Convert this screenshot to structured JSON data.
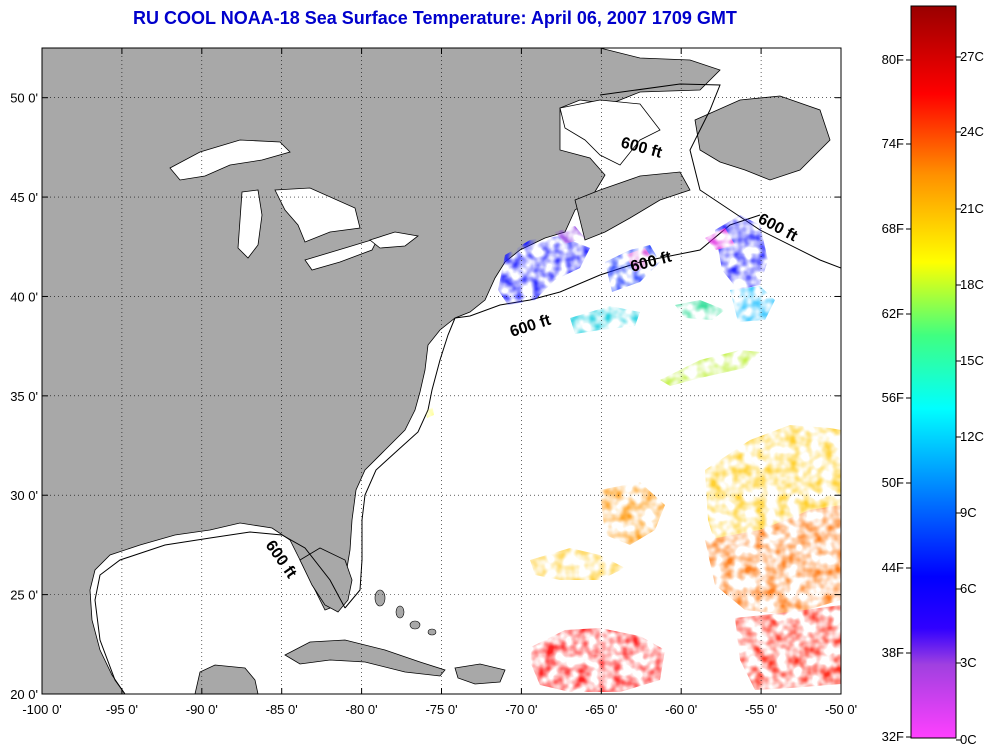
{
  "map": {
    "title": "RU COOL  NOAA-18  Sea Surface Temperature:  April 06, 2007 1709 GMT",
    "lon_range": [
      -100,
      -50
    ],
    "lat_range": [
      20,
      52.5
    ],
    "lon_ticks": [
      {
        "value": -100,
        "label": "-100 0'"
      },
      {
        "value": -95,
        "label": "-95 0'"
      },
      {
        "value": -90,
        "label": "-90 0'"
      },
      {
        "value": -85,
        "label": "-85 0'"
      },
      {
        "value": -80,
        "label": "-80 0'"
      },
      {
        "value": -75,
        "label": "-75 0'"
      },
      {
        "value": -70,
        "label": "-70 0'"
      },
      {
        "value": -65,
        "label": "-65 0'"
      },
      {
        "value": -60,
        "label": "-60 0'"
      },
      {
        "value": -55,
        "label": "-55 0'"
      },
      {
        "value": -50,
        "label": "-50 0'"
      }
    ],
    "lat_ticks": [
      {
        "value": 20,
        "label": "20 0'"
      },
      {
        "value": 25,
        "label": "25 0'"
      },
      {
        "value": 30,
        "label": "30 0'"
      },
      {
        "value": 35,
        "label": "35 0'"
      },
      {
        "value": 40,
        "label": "40 0'"
      },
      {
        "value": 45,
        "label": "45 0'"
      },
      {
        "value": 50,
        "label": "50 0'"
      }
    ],
    "grid": "dotted",
    "land_color": "#a8a8a8",
    "contour_label": "600 ft"
  },
  "colorbar": {
    "fahrenheit_labels": [
      "32F",
      "38F",
      "44F",
      "50F",
      "56F",
      "62F",
      "68F",
      "74F",
      "80F"
    ],
    "celsius_labels": [
      "0C",
      "3C",
      "6C",
      "9C",
      "12C",
      "15C",
      "18C",
      "21C",
      "24C",
      "27C"
    ],
    "colors": [
      "#ff00ff",
      "#8000ff",
      "#0000ff",
      "#0080ff",
      "#00ffff",
      "#00ff80",
      "#ffff00",
      "#ff8000",
      "#ff0000",
      "#8b0000"
    ]
  }
}
